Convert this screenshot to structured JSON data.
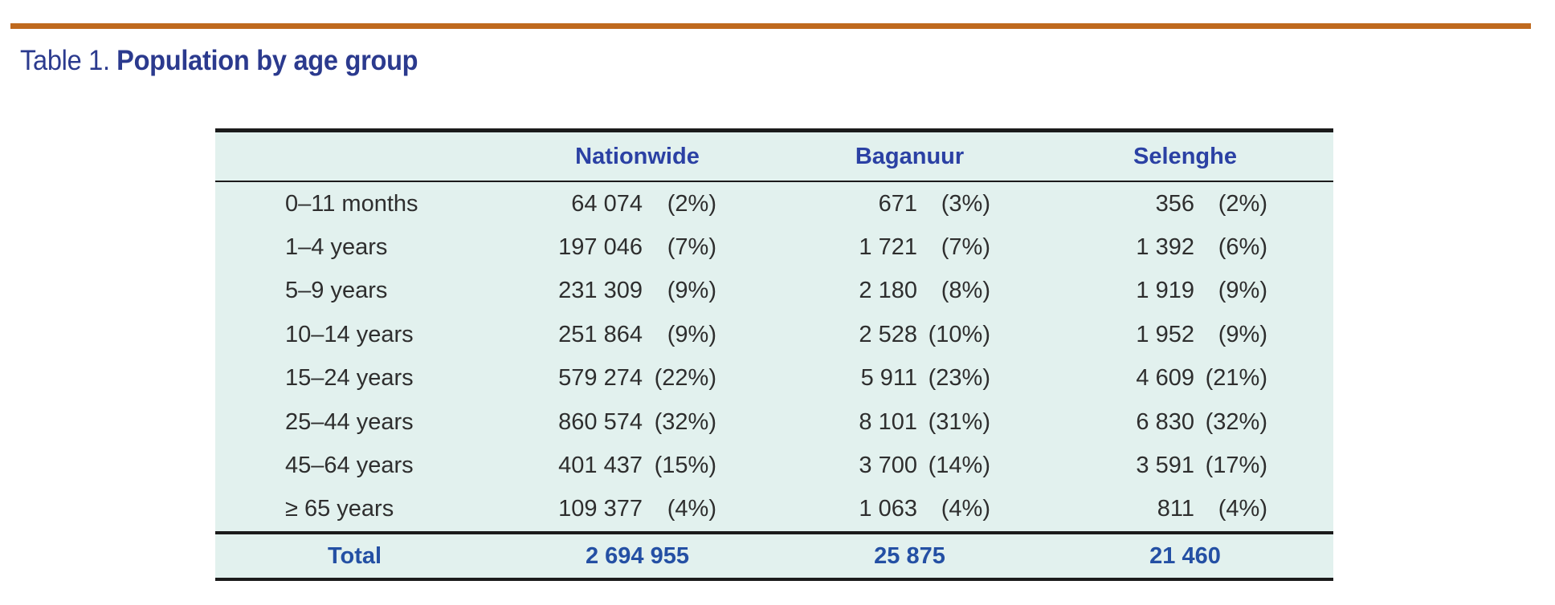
{
  "caption": {
    "label": "Table 1.",
    "title": "Population by age group"
  },
  "table": {
    "columns": [
      "Nationwide",
      "Baganuur",
      "Selenghe"
    ],
    "rows": [
      {
        "label": "0–11 months",
        "cells": [
          {
            "count": "64 074",
            "pct": "(2%)"
          },
          {
            "count": "671",
            "pct": "(3%)"
          },
          {
            "count": "356",
            "pct": "(2%)"
          }
        ]
      },
      {
        "label": "1–4 years",
        "cells": [
          {
            "count": "197 046",
            "pct": "(7%)"
          },
          {
            "count": "1 721",
            "pct": "(7%)"
          },
          {
            "count": "1 392",
            "pct": "(6%)"
          }
        ]
      },
      {
        "label": "5–9 years",
        "cells": [
          {
            "count": "231 309",
            "pct": "(9%)"
          },
          {
            "count": "2 180",
            "pct": "(8%)"
          },
          {
            "count": "1 919",
            "pct": "(9%)"
          }
        ]
      },
      {
        "label": "10–14 years",
        "cells": [
          {
            "count": "251 864",
            "pct": "(9%)"
          },
          {
            "count": "2 528",
            "pct": "(10%)"
          },
          {
            "count": "1 952",
            "pct": "(9%)"
          }
        ]
      },
      {
        "label": "15–24 years",
        "cells": [
          {
            "count": "579 274",
            "pct": "(22%)"
          },
          {
            "count": "5 911",
            "pct": "(23%)"
          },
          {
            "count": "4 609",
            "pct": "(21%)"
          }
        ]
      },
      {
        "label": "25–44 years",
        "cells": [
          {
            "count": "860 574",
            "pct": "(32%)"
          },
          {
            "count": "8 101",
            "pct": "(31%)"
          },
          {
            "count": "6 830",
            "pct": "(32%)"
          }
        ]
      },
      {
        "label": "45–64 years",
        "cells": [
          {
            "count": "401 437",
            "pct": "(15%)"
          },
          {
            "count": "3 700",
            "pct": "(14%)"
          },
          {
            "count": "3 591",
            "pct": "(17%)"
          }
        ]
      },
      {
        "label": "≥ 65 years",
        "cells": [
          {
            "count": "109 377",
            "pct": "(4%)"
          },
          {
            "count": "1 063",
            "pct": "(4%)"
          },
          {
            "count": "811",
            "pct": "(4%)"
          }
        ]
      }
    ],
    "total": {
      "label": "Total",
      "values": [
        "2 694 955",
        "25 875",
        "21 460"
      ]
    }
  },
  "colors": {
    "accent_orange": "#BF691E",
    "caption_navy": "#2B3A8E",
    "header_blue": "#2B41A4",
    "total_blue": "#2450A4",
    "table_background": "#E2F1EE",
    "body_text": "#2E2E2E",
    "rule_black": "#1B1B1B"
  }
}
